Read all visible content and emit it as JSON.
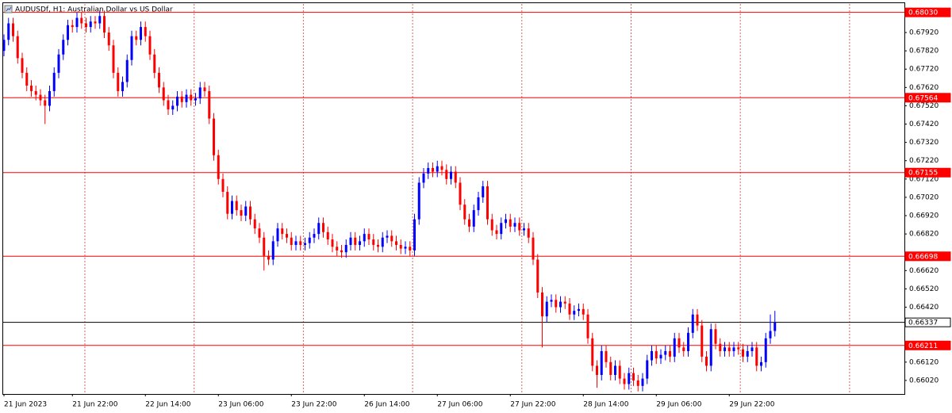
{
  "chart_data": {
    "type": "candlestick",
    "title": "AUDUSDf, H1:  Australian Dollar vs US Dollar",
    "categories": [
      "21 Jun 2023",
      null,
      null,
      null,
      null,
      null,
      null,
      null,
      null,
      null,
      null,
      null,
      null,
      null,
      null,
      "21 Jun 22:00",
      null,
      null,
      null,
      null,
      null,
      null,
      null,
      null,
      null,
      null,
      null,
      null,
      null,
      null,
      null,
      "22 Jun 14:00",
      null,
      null,
      null,
      null,
      null,
      null,
      null,
      null,
      null,
      null,
      null,
      null,
      null,
      null,
      null,
      "23 Jun 06:00",
      null,
      null,
      null,
      null,
      null,
      null,
      null,
      null,
      null,
      null,
      null,
      null,
      null,
      null,
      null,
      "23 Jun 22:00",
      null,
      null,
      null,
      null,
      null,
      null,
      null,
      null,
      null,
      null,
      null,
      null,
      null,
      null,
      null,
      "26 Jun 14:00",
      null,
      null,
      null,
      null,
      null,
      null,
      null,
      null,
      null,
      null,
      null,
      null,
      null,
      null,
      null,
      "27 Jun 06:00",
      null,
      null,
      null,
      null,
      null,
      null,
      null,
      null,
      null,
      null,
      null,
      null,
      null,
      null,
      null,
      "27 Jun 22:00",
      null,
      null,
      null,
      null,
      null,
      null,
      null,
      null,
      null,
      null,
      null,
      null,
      null,
      null,
      null,
      "28 Jun 14:00",
      null,
      null,
      null,
      null,
      null,
      null,
      null,
      null,
      null,
      null,
      null,
      null,
      null,
      null,
      null,
      "29 Jun 06:00",
      null,
      null,
      null,
      null,
      null,
      null,
      null,
      null,
      null,
      null,
      null,
      null,
      null,
      null,
      null,
      "29 Jun 22:00",
      null,
      null,
      null,
      null,
      null,
      null,
      null,
      null,
      null,
      null
    ],
    "open": [
      0.6782,
      0.6788,
      0.6797,
      0.679,
      0.6778,
      0.677,
      0.6763,
      0.676,
      0.6758,
      0.6755,
      0.6752,
      0.676,
      0.677,
      0.678,
      0.6788,
      0.6796,
      0.6795,
      0.68,
      0.6797,
      0.6795,
      0.6798,
      0.6797,
      0.6801,
      0.6792,
      0.6785,
      0.677,
      0.676,
      0.6765,
      0.6777,
      0.679,
      0.6788,
      0.6795,
      0.679,
      0.678,
      0.677,
      0.6762,
      0.6755,
      0.675,
      0.6752,
      0.6757,
      0.6754,
      0.6758,
      0.6755,
      0.6756,
      0.6762,
      0.676,
      0.6745,
      0.6725,
      0.6712,
      0.6705,
      0.6693,
      0.67,
      0.6695,
      0.6692,
      0.6697,
      0.669,
      0.6685,
      0.668,
      0.667,
      0.6668,
      0.6678,
      0.6685,
      0.6682,
      0.668,
      0.6676,
      0.6678,
      0.6676,
      0.6677,
      0.668,
      0.6682,
      0.6688,
      0.6683,
      0.6679,
      0.6675,
      0.6673,
      0.6672,
      0.6676,
      0.668,
      0.6676,
      0.6678,
      0.6682,
      0.6679,
      0.6676,
      0.6675,
      0.668,
      0.6681,
      0.6678,
      0.6676,
      0.6674,
      0.6675,
      0.6673,
      0.669,
      0.671,
      0.6715,
      0.6718,
      0.6716,
      0.6719,
      0.6717,
      0.6712,
      0.6716,
      0.671,
      0.6698,
      0.669,
      0.6686,
      0.6695,
      0.6702,
      0.6708,
      0.669,
      0.6684,
      0.6682,
      0.6688,
      0.669,
      0.6686,
      0.6688,
      0.6684,
      0.6685,
      0.668,
      0.6668,
      0.665,
      0.6637,
      0.6645,
      0.6646,
      0.6642,
      0.6645,
      0.6644,
      0.6638,
      0.664,
      0.6641,
      0.6638,
      0.6625,
      0.661,
      0.6605,
      0.6618,
      0.6612,
      0.6605,
      0.661,
      0.6603,
      0.66,
      0.6606,
      0.6602,
      0.6599,
      0.6603,
      0.6613,
      0.6618,
      0.6614,
      0.6616,
      0.6618,
      0.6615,
      0.6625,
      0.662,
      0.6618,
      0.6628,
      0.6638,
      0.6632,
      0.6615,
      0.661,
      0.663,
      0.6622,
      0.6618,
      0.662,
      0.6618,
      0.662,
      0.6619,
      0.6615,
      0.6618,
      0.662,
      0.661,
      0.6612,
      0.6625,
      0.6629
    ],
    "high": [
      0.6791,
      0.68,
      0.68,
      0.6793,
      0.6781,
      0.6773,
      0.6766,
      0.6763,
      0.6761,
      0.6758,
      0.6763,
      0.6773,
      0.6783,
      0.6791,
      0.6799,
      0.6799,
      0.6803,
      0.6803,
      0.68,
      0.6801,
      0.6801,
      0.6804,
      0.6804,
      0.6795,
      0.6788,
      0.6773,
      0.6768,
      0.678,
      0.6793,
      0.6793,
      0.6798,
      0.6798,
      0.6793,
      0.6783,
      0.6773,
      0.6765,
      0.6758,
      0.6755,
      0.676,
      0.676,
      0.6761,
      0.6761,
      0.6759,
      0.6765,
      0.6765,
      0.6763,
      0.6748,
      0.6728,
      0.6715,
      0.6708,
      0.6703,
      0.6703,
      0.6698,
      0.67,
      0.67,
      0.6693,
      0.6688,
      0.6683,
      0.6673,
      0.6681,
      0.6688,
      0.6688,
      0.6685,
      0.6683,
      0.6681,
      0.6681,
      0.668,
      0.6683,
      0.6685,
      0.6691,
      0.6691,
      0.6686,
      0.6682,
      0.6678,
      0.6676,
      0.6679,
      0.6683,
      0.6683,
      0.6681,
      0.6685,
      0.6685,
      0.6682,
      0.6679,
      0.6683,
      0.6684,
      0.6684,
      0.6681,
      0.6679,
      0.6678,
      0.6678,
      0.6693,
      0.6713,
      0.6718,
      0.6721,
      0.6721,
      0.6722,
      0.6722,
      0.672,
      0.6719,
      0.6719,
      0.6713,
      0.6701,
      0.6693,
      0.6698,
      0.6705,
      0.6711,
      0.6711,
      0.6693,
      0.6687,
      0.6691,
      0.6693,
      0.6693,
      0.6691,
      0.6691,
      0.6688,
      0.6688,
      0.6683,
      0.6671,
      0.6653,
      0.6648,
      0.6649,
      0.6649,
      0.6648,
      0.6648,
      0.6647,
      0.6643,
      0.6644,
      0.6644,
      0.6641,
      0.6628,
      0.6613,
      0.6621,
      0.6621,
      0.6615,
      0.6613,
      0.6613,
      0.6606,
      0.6609,
      0.6609,
      0.6605,
      0.6606,
      0.6616,
      0.6621,
      0.6621,
      0.6619,
      0.6621,
      0.6621,
      0.6628,
      0.6628,
      0.6623,
      0.6631,
      0.6641,
      0.6641,
      0.6635,
      0.6618,
      0.6633,
      0.6633,
      0.6625,
      0.6623,
      0.6623,
      0.6623,
      0.6623,
      0.6622,
      0.6621,
      0.6623,
      0.6623,
      0.6615,
      0.6628,
      0.6638,
      0.664
    ],
    "low": [
      0.6779,
      0.6785,
      0.6787,
      0.6775,
      0.6767,
      0.676,
      0.6757,
      0.6755,
      0.6752,
      0.6742,
      0.6749,
      0.6757,
      0.6767,
      0.6777,
      0.6785,
      0.6792,
      0.6792,
      0.6794,
      0.6792,
      0.6792,
      0.6794,
      0.6794,
      0.6789,
      0.6782,
      0.6767,
      0.6757,
      0.6757,
      0.6762,
      0.6774,
      0.6785,
      0.6785,
      0.6787,
      0.6777,
      0.6767,
      0.6759,
      0.6752,
      0.6747,
      0.6747,
      0.6749,
      0.6751,
      0.6751,
      0.6752,
      0.6752,
      0.6753,
      0.6757,
      0.6742,
      0.6722,
      0.6709,
      0.6702,
      0.669,
      0.669,
      0.6692,
      0.6689,
      0.6689,
      0.6687,
      0.6682,
      0.6677,
      0.6662,
      0.6665,
      0.6665,
      0.6675,
      0.6679,
      0.6677,
      0.6673,
      0.6673,
      0.6673,
      0.6673,
      0.6674,
      0.6677,
      0.6679,
      0.668,
      0.6676,
      0.6672,
      0.667,
      0.6669,
      0.6669,
      0.6673,
      0.6673,
      0.6673,
      0.6675,
      0.6676,
      0.6673,
      0.6672,
      0.6672,
      0.6677,
      0.6675,
      0.6673,
      0.6671,
      0.6671,
      0.667,
      0.667,
      0.6687,
      0.6707,
      0.6712,
      0.6713,
      0.6713,
      0.6714,
      0.6709,
      0.6709,
      0.6707,
      0.6695,
      0.6687,
      0.6683,
      0.6683,
      0.6692,
      0.6699,
      0.6687,
      0.6681,
      0.6679,
      0.6679,
      0.6685,
      0.6683,
      0.6683,
      0.6681,
      0.6681,
      0.6677,
      0.6665,
      0.6647,
      0.662,
      0.6634,
      0.6642,
      0.6639,
      0.6639,
      0.6641,
      0.6635,
      0.6635,
      0.6637,
      0.6635,
      0.6622,
      0.6607,
      0.6598,
      0.6602,
      0.6609,
      0.6602,
      0.6602,
      0.66,
      0.6597,
      0.6597,
      0.6599,
      0.6596,
      0.6596,
      0.66,
      0.661,
      0.6611,
      0.6611,
      0.6613,
      0.6612,
      0.6612,
      0.6617,
      0.6615,
      0.6615,
      0.6625,
      0.6629,
      0.6612,
      0.6607,
      0.6607,
      0.6619,
      0.6615,
      0.6615,
      0.6615,
      0.6615,
      0.6616,
      0.6612,
      0.6612,
      0.6615,
      0.6607,
      0.6607,
      0.6609,
      0.6622,
      0.6626
    ],
    "close": [
      0.6788,
      0.6797,
      0.679,
      0.6778,
      0.677,
      0.6763,
      0.676,
      0.6758,
      0.6755,
      0.6752,
      0.676,
      0.677,
      0.678,
      0.6788,
      0.6796,
      0.6795,
      0.68,
      0.6797,
      0.6795,
      0.6798,
      0.6797,
      0.6801,
      0.6792,
      0.6785,
      0.677,
      0.676,
      0.6765,
      0.6777,
      0.679,
      0.6788,
      0.6795,
      0.679,
      0.678,
      0.677,
      0.6762,
      0.6755,
      0.675,
      0.6752,
      0.6757,
      0.6754,
      0.6758,
      0.6755,
      0.6756,
      0.6762,
      0.676,
      0.6745,
      0.6725,
      0.6712,
      0.6705,
      0.6693,
      0.67,
      0.6695,
      0.6692,
      0.6697,
      0.669,
      0.6685,
      0.668,
      0.667,
      0.6668,
      0.6678,
      0.6685,
      0.6682,
      0.668,
      0.6676,
      0.6678,
      0.6676,
      0.6677,
      0.668,
      0.6682,
      0.6688,
      0.6683,
      0.6679,
      0.6675,
      0.6673,
      0.6672,
      0.6676,
      0.668,
      0.6676,
      0.6678,
      0.6682,
      0.6679,
      0.6676,
      0.6675,
      0.668,
      0.6681,
      0.6678,
      0.6676,
      0.6674,
      0.6675,
      0.6673,
      0.669,
      0.671,
      0.6715,
      0.6718,
      0.6716,
      0.6719,
      0.6717,
      0.6712,
      0.6716,
      0.671,
      0.6698,
      0.669,
      0.6686,
      0.6695,
      0.6702,
      0.6708,
      0.669,
      0.6684,
      0.6682,
      0.6688,
      0.669,
      0.6686,
      0.6688,
      0.6684,
      0.6685,
      0.668,
      0.6668,
      0.665,
      0.6637,
      0.6645,
      0.6646,
      0.6642,
      0.6645,
      0.6644,
      0.6638,
      0.664,
      0.6641,
      0.6638,
      0.6625,
      0.661,
      0.6605,
      0.6618,
      0.6612,
      0.6605,
      0.661,
      0.6603,
      0.66,
      0.6606,
      0.6602,
      0.6599,
      0.6603,
      0.6613,
      0.6618,
      0.6614,
      0.6616,
      0.6618,
      0.6615,
      0.6625,
      0.662,
      0.6618,
      0.6628,
      0.6638,
      0.6632,
      0.6615,
      0.661,
      0.663,
      0.6622,
      0.6618,
      0.662,
      0.6618,
      0.662,
      0.6619,
      0.6615,
      0.6618,
      0.662,
      0.661,
      0.6612,
      0.6625,
      0.6629,
      0.66337
    ],
    "up_color": "#0000ff",
    "down_color": "#ff0000",
    "ylim": [
      0.65946,
      0.68076
    ],
    "yticks": [
      {
        "value": 0.6792,
        "label": "0.67920"
      },
      {
        "value": 0.6782,
        "label": "0.67820"
      },
      {
        "value": 0.6772,
        "label": "0.67720"
      },
      {
        "value": 0.6762,
        "label": "0.67620"
      },
      {
        "value": 0.6752,
        "label": "0.67520"
      },
      {
        "value": 0.6742,
        "label": "0.67420"
      },
      {
        "value": 0.6732,
        "label": "0.67320"
      },
      {
        "value": 0.6722,
        "label": "0.67220"
      },
      {
        "value": 0.6712,
        "label": "0.67120"
      },
      {
        "value": 0.6702,
        "label": "0.67020"
      },
      {
        "value": 0.6692,
        "label": "0.66920"
      },
      {
        "value": 0.6682,
        "label": "0.66820"
      },
      {
        "value": 0.6662,
        "label": "0.66620"
      },
      {
        "value": 0.6652,
        "label": "0.66520"
      },
      {
        "value": 0.6642,
        "label": "0.66420"
      },
      {
        "value": 0.6612,
        "label": "0.66120"
      },
      {
        "value": 0.6602,
        "label": "0.66020"
      }
    ],
    "levels": [
      {
        "value": 0.6803,
        "label": "0.68030"
      },
      {
        "value": 0.67564,
        "label": "0.67564"
      },
      {
        "value": 0.67155,
        "label": "0.67155"
      },
      {
        "value": 0.66698,
        "label": "0.66698"
      },
      {
        "value": 0.66211,
        "label": "0.66211"
      }
    ],
    "level_color": "#ff0000",
    "current_price": {
      "value": 0.66337,
      "label": "0.66337"
    },
    "current_price_color": "#000000",
    "grid": true
  }
}
